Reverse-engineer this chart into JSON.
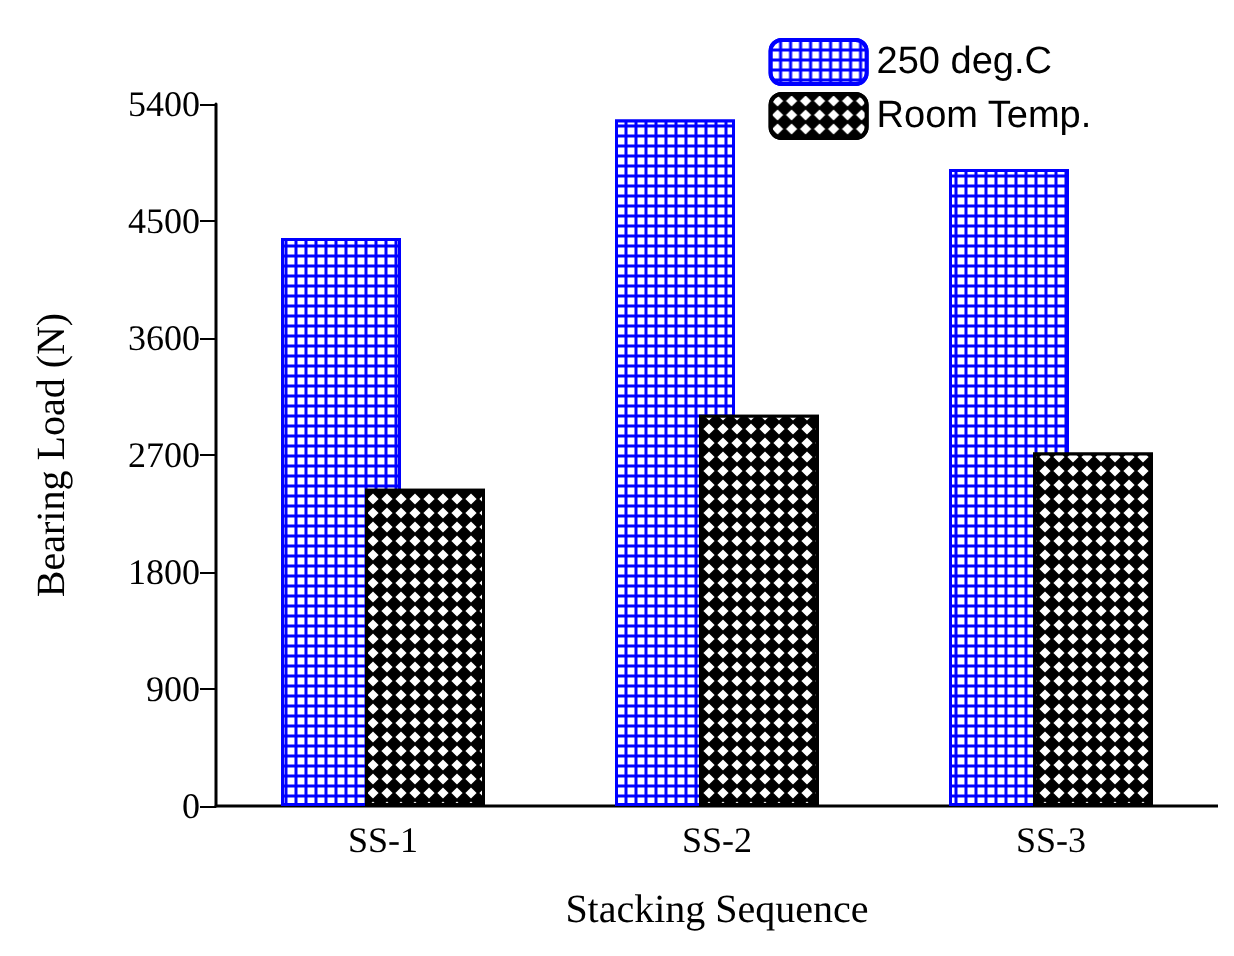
{
  "chart_data": {
    "type": "bar",
    "xlabel": "Stacking Sequence",
    "ylabel": "Bearing Load (N)",
    "categories": [
      "SS-1",
      "SS-2",
      "SS-3"
    ],
    "series": [
      {
        "name": "250 deg.C",
        "color": "#0000ff",
        "values": [
          4370,
          5280,
          4900
        ]
      },
      {
        "name": "Room Temp.",
        "color": "#000000",
        "values": [
          2440,
          3010,
          2720
        ]
      }
    ],
    "ylim": [
      0,
      5400
    ],
    "yticks": [
      0,
      900,
      1800,
      2700,
      3600,
      4500,
      5400
    ],
    "grid": false,
    "legend": "top right"
  }
}
